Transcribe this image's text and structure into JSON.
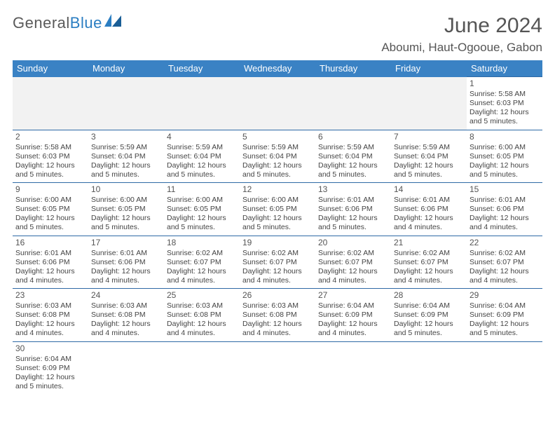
{
  "logo": {
    "text1": "General",
    "text2": "Blue"
  },
  "title": "June 2024",
  "location": "Aboumi, Haut-Ogooue, Gabon",
  "colors": {
    "header_bg": "#3a82c4",
    "header_text": "#ffffff",
    "border": "#2f6aa6",
    "logo_gray": "#5a5a5a",
    "logo_blue": "#2b7ec2",
    "text": "#444444",
    "blank_bg": "#f2f2f2"
  },
  "weekdays": [
    "Sunday",
    "Monday",
    "Tuesday",
    "Wednesday",
    "Thursday",
    "Friday",
    "Saturday"
  ],
  "days": {
    "1": {
      "sunrise": "5:58 AM",
      "sunset": "6:03 PM",
      "daylight": "12 hours and 5 minutes."
    },
    "2": {
      "sunrise": "5:58 AM",
      "sunset": "6:03 PM",
      "daylight": "12 hours and 5 minutes."
    },
    "3": {
      "sunrise": "5:59 AM",
      "sunset": "6:04 PM",
      "daylight": "12 hours and 5 minutes."
    },
    "4": {
      "sunrise": "5:59 AM",
      "sunset": "6:04 PM",
      "daylight": "12 hours and 5 minutes."
    },
    "5": {
      "sunrise": "5:59 AM",
      "sunset": "6:04 PM",
      "daylight": "12 hours and 5 minutes."
    },
    "6": {
      "sunrise": "5:59 AM",
      "sunset": "6:04 PM",
      "daylight": "12 hours and 5 minutes."
    },
    "7": {
      "sunrise": "5:59 AM",
      "sunset": "6:04 PM",
      "daylight": "12 hours and 5 minutes."
    },
    "8": {
      "sunrise": "6:00 AM",
      "sunset": "6:05 PM",
      "daylight": "12 hours and 5 minutes."
    },
    "9": {
      "sunrise": "6:00 AM",
      "sunset": "6:05 PM",
      "daylight": "12 hours and 5 minutes."
    },
    "10": {
      "sunrise": "6:00 AM",
      "sunset": "6:05 PM",
      "daylight": "12 hours and 5 minutes."
    },
    "11": {
      "sunrise": "6:00 AM",
      "sunset": "6:05 PM",
      "daylight": "12 hours and 5 minutes."
    },
    "12": {
      "sunrise": "6:00 AM",
      "sunset": "6:05 PM",
      "daylight": "12 hours and 5 minutes."
    },
    "13": {
      "sunrise": "6:01 AM",
      "sunset": "6:06 PM",
      "daylight": "12 hours and 5 minutes."
    },
    "14": {
      "sunrise": "6:01 AM",
      "sunset": "6:06 PM",
      "daylight": "12 hours and 4 minutes."
    },
    "15": {
      "sunrise": "6:01 AM",
      "sunset": "6:06 PM",
      "daylight": "12 hours and 4 minutes."
    },
    "16": {
      "sunrise": "6:01 AM",
      "sunset": "6:06 PM",
      "daylight": "12 hours and 4 minutes."
    },
    "17": {
      "sunrise": "6:01 AM",
      "sunset": "6:06 PM",
      "daylight": "12 hours and 4 minutes."
    },
    "18": {
      "sunrise": "6:02 AM",
      "sunset": "6:07 PM",
      "daylight": "12 hours and 4 minutes."
    },
    "19": {
      "sunrise": "6:02 AM",
      "sunset": "6:07 PM",
      "daylight": "12 hours and 4 minutes."
    },
    "20": {
      "sunrise": "6:02 AM",
      "sunset": "6:07 PM",
      "daylight": "12 hours and 4 minutes."
    },
    "21": {
      "sunrise": "6:02 AM",
      "sunset": "6:07 PM",
      "daylight": "12 hours and 4 minutes."
    },
    "22": {
      "sunrise": "6:02 AM",
      "sunset": "6:07 PM",
      "daylight": "12 hours and 4 minutes."
    },
    "23": {
      "sunrise": "6:03 AM",
      "sunset": "6:08 PM",
      "daylight": "12 hours and 4 minutes."
    },
    "24": {
      "sunrise": "6:03 AM",
      "sunset": "6:08 PM",
      "daylight": "12 hours and 4 minutes."
    },
    "25": {
      "sunrise": "6:03 AM",
      "sunset": "6:08 PM",
      "daylight": "12 hours and 4 minutes."
    },
    "26": {
      "sunrise": "6:03 AM",
      "sunset": "6:08 PM",
      "daylight": "12 hours and 4 minutes."
    },
    "27": {
      "sunrise": "6:04 AM",
      "sunset": "6:09 PM",
      "daylight": "12 hours and 4 minutes."
    },
    "28": {
      "sunrise": "6:04 AM",
      "sunset": "6:09 PM",
      "daylight": "12 hours and 5 minutes."
    },
    "29": {
      "sunrise": "6:04 AM",
      "sunset": "6:09 PM",
      "daylight": "12 hours and 5 minutes."
    },
    "30": {
      "sunrise": "6:04 AM",
      "sunset": "6:09 PM",
      "daylight": "12 hours and 5 minutes."
    }
  },
  "labels": {
    "sunrise": "Sunrise: ",
    "sunset": "Sunset: ",
    "daylight": "Daylight: "
  },
  "grid": [
    [
      null,
      null,
      null,
      null,
      null,
      null,
      "1"
    ],
    [
      "2",
      "3",
      "4",
      "5",
      "6",
      "7",
      "8"
    ],
    [
      "9",
      "10",
      "11",
      "12",
      "13",
      "14",
      "15"
    ],
    [
      "16",
      "17",
      "18",
      "19",
      "20",
      "21",
      "22"
    ],
    [
      "23",
      "24",
      "25",
      "26",
      "27",
      "28",
      "29"
    ],
    [
      "30",
      null,
      null,
      null,
      null,
      null,
      null
    ]
  ]
}
